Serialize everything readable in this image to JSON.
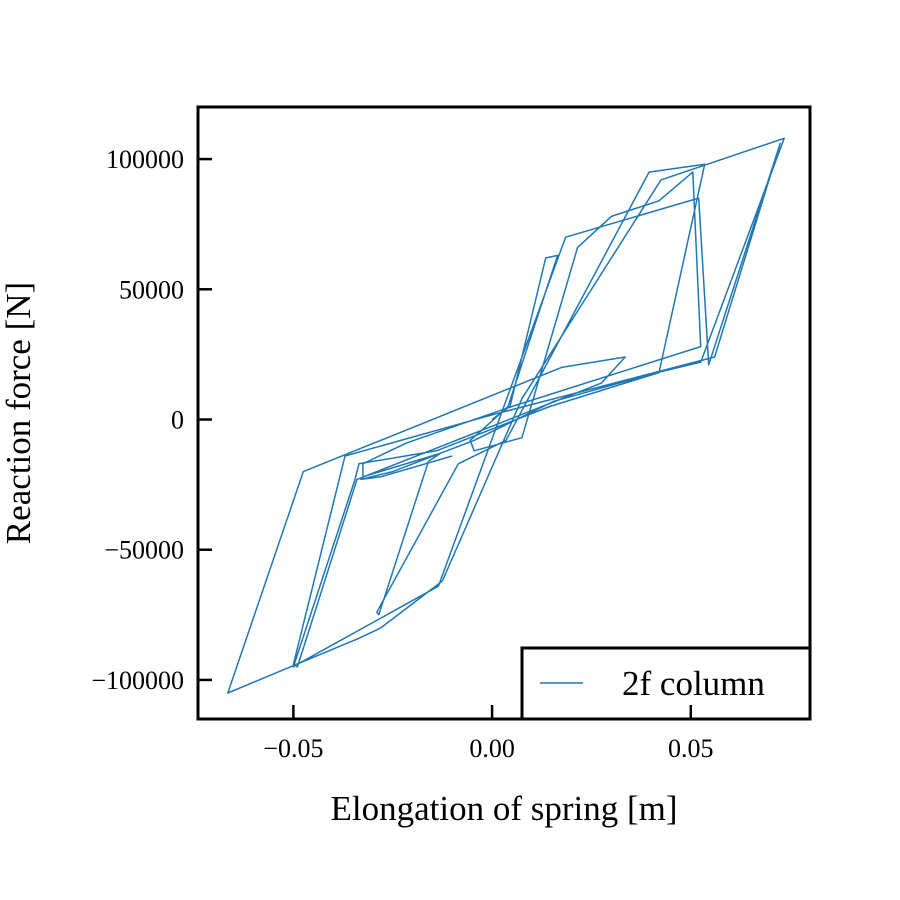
{
  "chart_data": {
    "type": "line",
    "title": "",
    "xlabel": "Elongation of spring [m]",
    "ylabel": "Reaction force [N]",
    "xlim": [
      -0.074,
      0.08
    ],
    "ylim": [
      -115000,
      120000
    ],
    "xticks": [
      {
        "value": -0.05,
        "label": "−0.05"
      },
      {
        "value": 0.0,
        "label": "0.00"
      },
      {
        "value": 0.05,
        "label": "0.05"
      }
    ],
    "yticks": [
      {
        "value": 100000,
        "label": "100000"
      },
      {
        "value": 50000,
        "label": "50000"
      },
      {
        "value": 0,
        "label": "0"
      },
      {
        "value": -50000,
        "label": "−50000"
      },
      {
        "value": -100000,
        "label": "−100000"
      }
    ],
    "grid": false,
    "legend_position": "lower-right",
    "series": [
      {
        "name": "2f column",
        "color": "#1f77b4",
        "x": [
          0.0,
          0.0045,
          0.0135,
          0.0165,
          0.004,
          -0.0025,
          -0.0055,
          -0.0045,
          0.0075,
          0.0215,
          0.03,
          0.042,
          0.0505,
          0.0525,
          0.005,
          -0.0215,
          -0.0325,
          -0.0325,
          -0.013,
          -0.016,
          -0.0285,
          -0.029,
          -0.0085,
          0.0035,
          0.0395,
          0.0535,
          0.042,
          0.0145,
          -0.014,
          -0.0335,
          -0.0345,
          -0.05,
          -0.049,
          -0.0135,
          0.0185,
          0.052,
          0.0545,
          0.0725,
          0.056,
          0.0005,
          -0.037,
          -0.05,
          -0.049,
          -0.034,
          0.0275,
          0.0335,
          0.0175,
          -0.0475,
          -0.0665,
          -0.0335,
          -0.028,
          -0.0125,
          0.0075,
          0.0425,
          0.0735,
          0.0525,
          0.0415,
          0.0155,
          -0.0045,
          -0.025,
          -0.033,
          -0.028,
          -0.01
        ],
        "y": [
          0,
          5000,
          62000,
          63000,
          5000,
          -4000,
          -8000,
          -12000,
          -7000,
          66000,
          78000,
          84000,
          95000,
          28000,
          5000,
          -9000,
          -17000,
          -22000,
          -13000,
          -16000,
          -75000,
          -74000,
          -17000,
          -8000,
          95000,
          98000,
          18000,
          5000,
          -12000,
          -17000,
          -23000,
          -95000,
          -94000,
          -64000,
          70000,
          85000,
          21000,
          106000,
          24000,
          2000,
          -14000,
          -94000,
          -95000,
          -23000,
          14000,
          24000,
          20000,
          -20000,
          -105000,
          -84000,
          -80000,
          -62000,
          8000,
          92000,
          108000,
          22000,
          18000,
          7000,
          -8000,
          -20000,
          -23000,
          -22000,
          -14000
        ]
      }
    ]
  }
}
